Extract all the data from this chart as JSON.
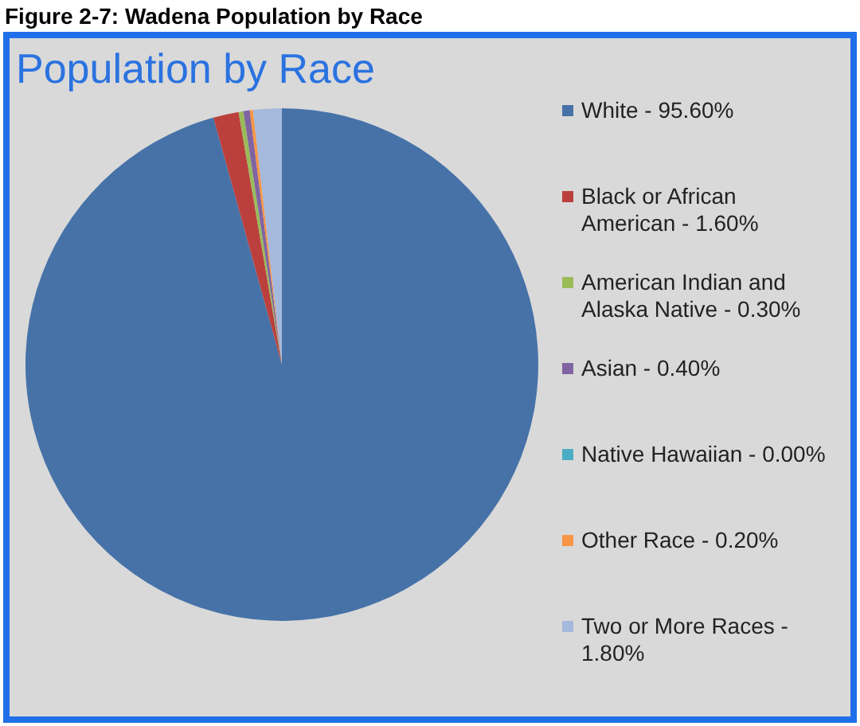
{
  "chart_data": {
    "type": "pie",
    "title": "Population by Race",
    "annotations": [
      "Figure 2-7: Wadena Population by Race"
    ],
    "categories": [
      "White - 95.60%",
      "Black or African American - 1.60%",
      "American Indian and Alaska Native - 0.30%",
      "Asian - 0.40%",
      "Native Hawaiian - 0.00%",
      "Other Race - 0.20%",
      "Two or More Races - 1.80%"
    ],
    "values": [
      95.6,
      1.6,
      0.3,
      0.4,
      0,
      0.2,
      1.8
    ],
    "colors": [
      "#4672a8",
      "#bb403d",
      "#9bbb59",
      "#8064a2",
      "#4bacc6",
      "#f79646",
      "#a5b9dc"
    ],
    "legend": "right"
  }
}
